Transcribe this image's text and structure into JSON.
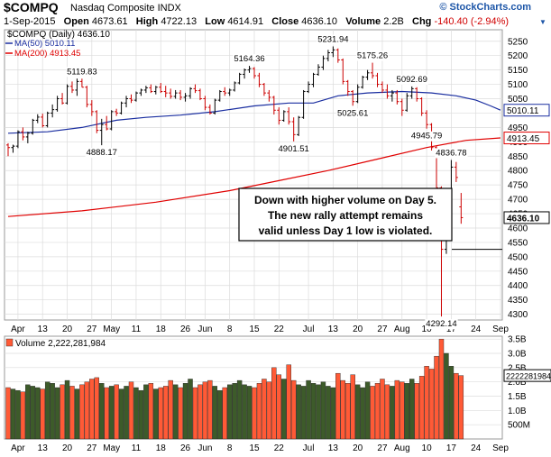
{
  "header": {
    "symbol": "$COMPQ",
    "name": "Nasdaq Composite INDX",
    "credit": "© StockCharts.com",
    "date": "1-Sep-2015",
    "open_label": "Open",
    "open": "4673.61",
    "high_label": "High",
    "high": "4722.13",
    "low_label": "Low",
    "low": "4614.91",
    "close_label": "Close",
    "close": "4636.10",
    "volume_label": "Volume",
    "volume": "2.2B",
    "chg_label": "Chg",
    "chg": "-140.40 (-2.94%)",
    "chg_arrow": "▼"
  },
  "colors": {
    "up": "#000000",
    "down": "#cc0000",
    "ma50": "#1a2ea0",
    "ma200": "#e00000",
    "vol_up": "#3d5b2a",
    "vol_down": "#ff5a36",
    "grid": "#dcdcdc",
    "panel_bg": "#ffffff"
  },
  "chart_data": [
    {
      "type": "ohlc",
      "legend_title": "$COMPQ (Daily) 4636.10",
      "ma50_label": "MA(50) 5010.11",
      "ma200_label": "MA(200) 4913.45",
      "ylim": [
        4280,
        5290
      ],
      "y_ticks": [
        4300,
        4350,
        4400,
        4450,
        4500,
        4550,
        4600,
        4650,
        4700,
        4750,
        4800,
        4850,
        4900,
        4950,
        5000,
        5050,
        5100,
        5150,
        5200,
        5250
      ],
      "x_labels": [
        "Apr",
        "13",
        "20",
        "27",
        "May",
        "11",
        "18",
        "26",
        "Jun",
        "8",
        "15",
        "22",
        "Jul",
        "13",
        "20",
        "27",
        "Aug",
        "10",
        "17",
        "24",
        "Sep"
      ],
      "x_label_positions": [
        2,
        7,
        12,
        17,
        21,
        26,
        31,
        36,
        40,
        45,
        50,
        55,
        61,
        66,
        71,
        76,
        80,
        85,
        90,
        95,
        100
      ],
      "bars": [
        [
          4889,
          4895,
          4850,
          4880
        ],
        [
          4880,
          4890,
          4862,
          4885
        ],
        [
          4885,
          4940,
          4878,
          4935
        ],
        [
          4935,
          4950,
          4905,
          4917
        ],
        [
          4917,
          4935,
          4895,
          4930
        ],
        [
          4930,
          4980,
          4925,
          4975
        ],
        [
          4975,
          4996,
          4965,
          4986
        ],
        [
          4986,
          4998,
          4950,
          4956
        ],
        [
          4956,
          5005,
          4950,
          5000
        ],
        [
          5000,
          5030,
          4985,
          5012
        ],
        [
          5012,
          5060,
          5005,
          5050
        ],
        [
          5050,
          5070,
          5030,
          5035
        ],
        [
          5035,
          5100,
          5030,
          5093
        ],
        [
          5093,
          5110,
          5070,
          5080
        ],
        [
          5080,
          5120,
          5060,
          5110
        ],
        [
          5110,
          5119.83,
          5090,
          5090
        ],
        [
          5090,
          5095,
          5020,
          5030
        ],
        [
          5030,
          5045,
          4990,
          5005
        ],
        [
          5005,
          5010,
          4930,
          4940
        ],
        [
          4940,
          4980,
          4888.17,
          4960
        ],
        [
          4960,
          4990,
          4940,
          4945
        ],
        [
          4945,
          5010,
          4940,
          5005
        ],
        [
          5005,
          5015,
          4990,
          5000
        ],
        [
          5000,
          5040,
          4995,
          5035
        ],
        [
          5035,
          5060,
          5020,
          5050
        ],
        [
          5050,
          5065,
          5035,
          5045
        ],
        [
          5045,
          5075,
          5040,
          5070
        ],
        [
          5070,
          5085,
          5060,
          5080
        ],
        [
          5080,
          5095,
          5070,
          5088
        ],
        [
          5088,
          5100,
          5070,
          5075
        ],
        [
          5075,
          5095,
          5065,
          5090
        ],
        [
          5090,
          5105,
          5070,
          5075
        ],
        [
          5075,
          5095,
          5055,
          5070
        ],
        [
          5070,
          5085,
          5050,
          5058
        ],
        [
          5058,
          5080,
          5050,
          5070
        ],
        [
          5070,
          5080,
          5045,
          5055
        ],
        [
          5055,
          5070,
          5040,
          5060
        ],
        [
          5060,
          5090,
          5050,
          5085
        ],
        [
          5085,
          5100,
          5070,
          5078
        ],
        [
          5078,
          5085,
          5045,
          5050
        ],
        [
          5050,
          5060,
          5010,
          5020
        ],
        [
          5020,
          5030,
          4995,
          5000
        ],
        [
          5000,
          5050,
          4995,
          5045
        ],
        [
          5045,
          5080,
          5040,
          5075
        ],
        [
          5075,
          5090,
          5060,
          5070
        ],
        [
          5070,
          5085,
          5060,
          5080
        ],
        [
          5080,
          5110,
          5075,
          5105
        ],
        [
          5105,
          5140,
          5100,
          5135
        ],
        [
          5135,
          5155,
          5120,
          5150
        ],
        [
          5150,
          5164.36,
          5140,
          5155
        ],
        [
          5155,
          5160,
          5120,
          5130
        ],
        [
          5130,
          5140,
          5090,
          5100
        ],
        [
          5100,
          5105,
          5060,
          5070
        ],
        [
          5070,
          5080,
          5040,
          5055
        ],
        [
          5055,
          5060,
          4995,
          5010
        ],
        [
          5010,
          5020,
          4960,
          4975
        ],
        [
          4975,
          5010,
          4970,
          5005
        ],
        [
          5005,
          5020,
          4960,
          4970
        ],
        [
          4970,
          4985,
          4901.51,
          4925
        ],
        [
          4925,
          4990,
          4920,
          4985
        ],
        [
          4985,
          5080,
          4980,
          5075
        ],
        [
          5075,
          5110,
          5070,
          5100
        ],
        [
          5100,
          5140,
          5090,
          5135
        ],
        [
          5135,
          5170,
          5130,
          5160
        ],
        [
          5160,
          5200,
          5150,
          5190
        ],
        [
          5190,
          5220,
          5180,
          5210
        ],
        [
          5210,
          5231.94,
          5195,
          5220
        ],
        [
          5220,
          5225,
          5175,
          5185
        ],
        [
          5185,
          5190,
          5100,
          5110
        ],
        [
          5110,
          5115,
          5060,
          5075
        ],
        [
          5075,
          5080,
          5025.61,
          5040
        ],
        [
          5040,
          5100,
          5035,
          5090
        ],
        [
          5090,
          5130,
          5085,
          5125
        ],
        [
          5125,
          5150,
          5115,
          5140
        ],
        [
          5140,
          5175.26,
          5120,
          5130
        ],
        [
          5130,
          5140,
          5090,
          5100
        ],
        [
          5100,
          5110,
          5070,
          5080
        ],
        [
          5080,
          5100,
          5050,
          5060
        ],
        [
          5060,
          5080,
          5040,
          5070
        ],
        [
          5070,
          5080,
          5030,
          5040
        ],
        [
          5040,
          5050,
          4990,
          5010
        ],
        [
          5010,
          5070,
          5005,
          5060
        ],
        [
          5060,
          5092.69,
          5050,
          5085
        ],
        [
          5085,
          5090,
          5040,
          5050
        ],
        [
          5050,
          5055,
          4990,
          5000
        ],
        [
          5000,
          5010,
          4945.79,
          4960
        ],
        [
          4960,
          4965,
          4870,
          4880
        ],
        [
          4880,
          4885,
          4720,
          4740
        ],
        [
          4740,
          4745,
          4292.14,
          4526
        ],
        [
          4526,
          4700,
          4510,
          4697
        ],
        [
          4697,
          4836.78,
          4690,
          4812
        ],
        [
          4812,
          4830,
          4760,
          4776
        ],
        [
          4673.61,
          4722.13,
          4614.91,
          4636.1
        ]
      ],
      "ma50": [
        [
          0,
          4930
        ],
        [
          8,
          4935
        ],
        [
          15,
          4950
        ],
        [
          22,
          4975
        ],
        [
          28,
          4985
        ],
        [
          35,
          4993
        ],
        [
          42,
          5005
        ],
        [
          50,
          5025
        ],
        [
          57,
          5035
        ],
        [
          62,
          5035
        ],
        [
          67,
          5060
        ],
        [
          73,
          5070
        ],
        [
          80,
          5075
        ],
        [
          86,
          5070
        ],
        [
          91,
          5060
        ],
        [
          95,
          5045
        ],
        [
          98,
          5025
        ],
        [
          100,
          5010.11
        ]
      ],
      "ma200": [
        [
          0,
          4640
        ],
        [
          15,
          4660
        ],
        [
          30,
          4690
        ],
        [
          45,
          4730
        ],
        [
          55,
          4765
        ],
        [
          65,
          4800
        ],
        [
          75,
          4840
        ],
        [
          85,
          4880
        ],
        [
          93,
          4905
        ],
        [
          100,
          4913.45
        ]
      ],
      "annotations": [
        {
          "bar": 15,
          "text": "5119.83",
          "pos": "above"
        },
        {
          "bar": 19,
          "text": "4888.17",
          "pos": "below"
        },
        {
          "bar": 49,
          "text": "5164.36",
          "pos": "above"
        },
        {
          "bar": 58,
          "text": "4901.51",
          "pos": "below"
        },
        {
          "bar": 66,
          "text": "5231.94",
          "pos": "above"
        },
        {
          "bar": 70,
          "text": "5025.61",
          "pos": "below"
        },
        {
          "bar": 74,
          "text": "5175.26",
          "pos": "above"
        },
        {
          "bar": 82,
          "text": "5092.69",
          "pos": "above"
        },
        {
          "bar": 85,
          "text": "4945.79",
          "pos": "below"
        },
        {
          "bar": 90,
          "text": "4836.78",
          "pos": "above"
        },
        {
          "bar": 88,
          "text": "4292.14",
          "pos": "below"
        }
      ],
      "last_close_label": "4636.10",
      "ma50_tag": "5010.11",
      "ma200_tag": "4913.45",
      "callout": [
        "Down with higher volume on Day 5.",
        "The new rally attempt remains",
        "valid unless Day 1 low is violated."
      ],
      "callout_line_value": 4526
    },
    {
      "type": "bar",
      "legend_title": "Volume 2,222,281,984",
      "ylim": [
        0,
        3600000000
      ],
      "y_ticks": [
        500000000,
        1000000000,
        1500000000,
        2000000000,
        2500000000,
        3000000000,
        3500000000
      ],
      "y_tick_labels": [
        "500M",
        "1.0B",
        "1.5B",
        "2.0B",
        "2.5B",
        "3.0B",
        "3.5B"
      ],
      "last_value_label": "2222281984",
      "values_millions": [
        1800,
        1750,
        1700,
        1650,
        1900,
        1850,
        1800,
        1750,
        2000,
        1950,
        1800,
        1900,
        2050,
        1850,
        1750,
        1900,
        2000,
        2100,
        2150,
        1950,
        1800,
        1850,
        1900,
        1750,
        1850,
        2000,
        1800,
        1700,
        1900,
        1950,
        1750,
        1800,
        1850,
        2050,
        1900,
        1800,
        1950,
        2100,
        1800,
        1900,
        2000,
        2050,
        1850,
        1700,
        1800,
        1900,
        1950,
        2050,
        1900,
        1850,
        1800,
        1950,
        2100,
        2000,
        2500,
        2250,
        2100,
        2600,
        2050,
        1900,
        1850,
        2050,
        1950,
        1900,
        2000,
        1850,
        1800,
        2300,
        2050,
        1950,
        2250,
        1900,
        1800,
        2000,
        1850,
        1950,
        2100,
        1900,
        1850,
        2050,
        2000,
        1950,
        2100,
        1950,
        2200,
        2550,
        2450,
        2900,
        3500,
        3000,
        2550,
        2300,
        2222.28
      ],
      "x_labels": [
        "Apr",
        "13",
        "20",
        "27",
        "May",
        "11",
        "18",
        "26",
        "Jun",
        "8",
        "15",
        "22",
        "Jul",
        "13",
        "20",
        "27",
        "Aug",
        "10",
        "17",
        "24",
        "Sep"
      ]
    }
  ]
}
